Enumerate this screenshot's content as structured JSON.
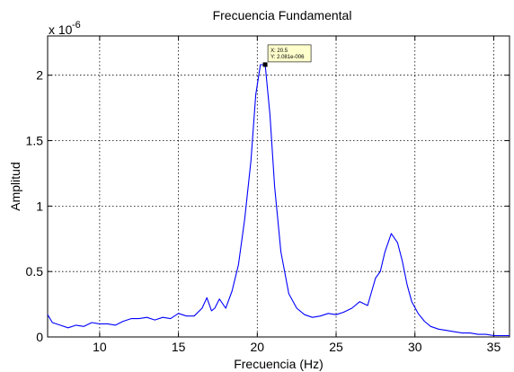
{
  "chart_data": {
    "type": "line",
    "title": "Frecuencia Fundamental",
    "xlabel": "Frecuencia (Hz)",
    "ylabel": "Amplitud",
    "exponent_label": {
      "base": "x 10",
      "power": "-6"
    },
    "xlim": [
      6.7,
      36
    ],
    "ylim": [
      0,
      2.3
    ],
    "grid": true,
    "x_ticks": [
      10,
      15,
      20,
      25,
      30,
      35
    ],
    "x_tick_labels": [
      "10",
      "15",
      "20",
      "25",
      "30",
      "35"
    ],
    "y_ticks": [
      0,
      0.5,
      1,
      1.5,
      2
    ],
    "y_tick_labels": [
      "0",
      "0.5",
      "1",
      "1.5",
      "2"
    ],
    "line_color": "#0000ff",
    "series": [
      {
        "x": [
          6.7,
          7.0,
          7.5,
          8.0,
          8.5,
          9.0,
          9.5,
          10.0,
          10.5,
          11.0,
          11.5,
          12.0,
          12.5,
          13.0,
          13.5,
          14.0,
          14.5,
          15.0,
          15.5,
          16.0,
          16.5,
          16.8,
          17.1,
          17.3,
          17.6,
          18.0,
          18.4,
          18.8,
          19.2,
          19.6,
          19.9,
          20.2,
          20.5,
          20.8,
          21.1,
          21.5,
          22.0,
          22.5,
          23.0,
          23.5,
          24.0,
          24.5,
          25.0,
          25.5,
          26.0,
          26.5,
          27.0,
          27.5,
          27.8,
          28.1,
          28.5,
          28.9,
          29.2,
          29.5,
          29.8,
          30.2,
          30.6,
          31.0,
          31.5,
          32.0,
          32.5,
          33.0,
          33.5,
          34.0,
          34.5,
          35.0,
          35.5,
          36.0
        ],
        "y": [
          0.17,
          0.11,
          0.09,
          0.07,
          0.09,
          0.08,
          0.11,
          0.1,
          0.1,
          0.09,
          0.12,
          0.14,
          0.14,
          0.15,
          0.13,
          0.15,
          0.14,
          0.18,
          0.16,
          0.16,
          0.22,
          0.3,
          0.2,
          0.22,
          0.29,
          0.22,
          0.35,
          0.55,
          0.9,
          1.35,
          1.85,
          2.08,
          2.08,
          1.7,
          1.15,
          0.65,
          0.33,
          0.22,
          0.17,
          0.15,
          0.16,
          0.18,
          0.17,
          0.19,
          0.22,
          0.27,
          0.24,
          0.45,
          0.5,
          0.65,
          0.79,
          0.72,
          0.58,
          0.4,
          0.27,
          0.18,
          0.12,
          0.08,
          0.06,
          0.05,
          0.04,
          0.03,
          0.03,
          0.02,
          0.02,
          0.01,
          0.01,
          0.01
        ]
      }
    ],
    "datatip": {
      "x": 20.5,
      "y": 2.081,
      "x_text": "X: 20.5",
      "y_text": "Y: 2.081e-006"
    }
  }
}
